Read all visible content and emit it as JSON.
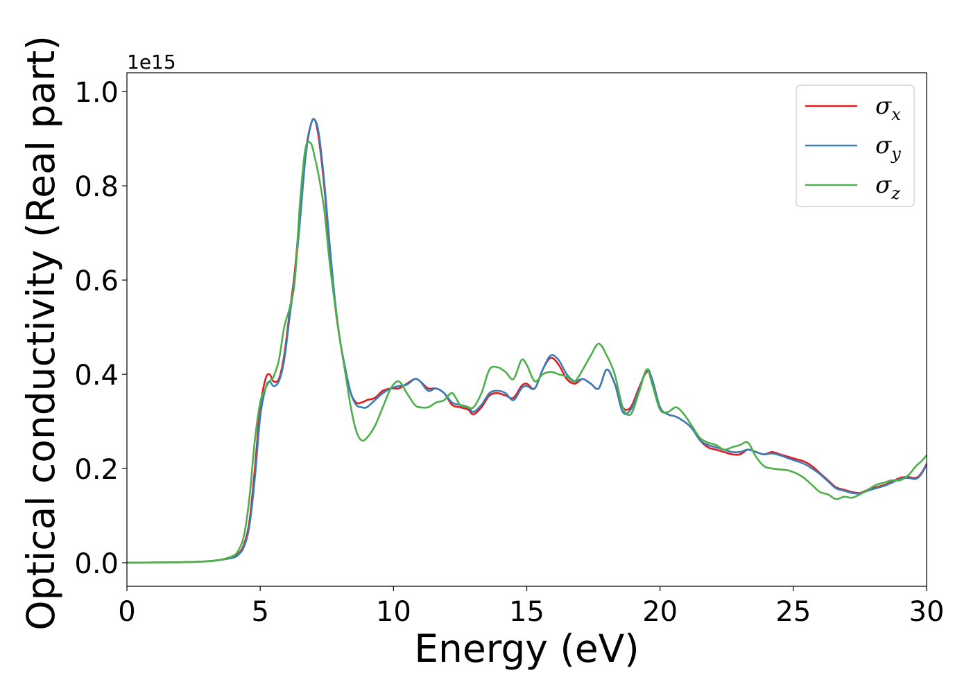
{
  "chart_data": {
    "type": "line",
    "xlabel": "Energy (eV)",
    "ylabel": "Optical conductivity (Real part)",
    "y_offset_label": "1e15",
    "xlim": [
      0,
      30
    ],
    "ylim": [
      -0.05,
      1.04
    ],
    "x_ticks": [
      0,
      5,
      10,
      15,
      20,
      25,
      30
    ],
    "x_tick_labels": [
      "0",
      "5",
      "10",
      "15",
      "20",
      "25",
      "30"
    ],
    "y_ticks": [
      0.0,
      0.2,
      0.4,
      0.6,
      0.8,
      1.0
    ],
    "y_tick_labels": [
      "0.0",
      "0.2",
      "0.4",
      "0.6",
      "0.8",
      "1.0"
    ],
    "grid": false,
    "legend_position": "top-right",
    "series": [
      {
        "name": "σx",
        "legend_main": "σ",
        "legend_sub": "x",
        "color": "#e41a1c",
        "x": [
          0,
          2,
          3,
          3.5,
          4,
          4.2,
          4.4,
          4.6,
          4.8,
          5.0,
          5.2,
          5.35,
          5.5,
          5.7,
          5.9,
          6.1,
          6.3,
          6.5,
          6.7,
          6.9,
          7.05,
          7.2,
          7.4,
          7.6,
          7.8,
          8.0,
          8.2,
          8.4,
          8.6,
          8.8,
          9.0,
          9.3,
          9.6,
          9.9,
          10.2,
          10.5,
          10.8,
          11.0,
          11.3,
          11.6,
          11.9,
          12.2,
          12.5,
          12.8,
          13.0,
          13.3,
          13.6,
          13.9,
          14.2,
          14.5,
          14.8,
          15.0,
          15.3,
          15.6,
          15.9,
          16.2,
          16.5,
          16.8,
          17.1,
          17.4,
          17.7,
          18.0,
          18.3,
          18.6,
          18.9,
          19.2,
          19.5,
          19.7,
          20.0,
          20.3,
          20.6,
          20.9,
          21.2,
          21.5,
          21.8,
          22.1,
          22.4,
          22.7,
          23.0,
          23.3,
          23.6,
          23.9,
          24.2,
          24.5,
          24.8,
          25.1,
          25.4,
          25.7,
          26.0,
          26.3,
          26.6,
          26.9,
          27.2,
          27.5,
          27.8,
          28.1,
          28.4,
          28.7,
          29.0,
          29.3,
          29.6,
          29.8,
          30.0
        ],
        "y": [
          0.0,
          0.001,
          0.003,
          0.006,
          0.012,
          0.02,
          0.04,
          0.09,
          0.2,
          0.33,
          0.39,
          0.4,
          0.385,
          0.39,
          0.44,
          0.53,
          0.62,
          0.75,
          0.87,
          0.93,
          0.94,
          0.9,
          0.8,
          0.67,
          0.55,
          0.47,
          0.41,
          0.36,
          0.34,
          0.34,
          0.345,
          0.35,
          0.365,
          0.37,
          0.37,
          0.38,
          0.39,
          0.385,
          0.37,
          0.37,
          0.36,
          0.335,
          0.33,
          0.325,
          0.315,
          0.33,
          0.355,
          0.36,
          0.355,
          0.35,
          0.375,
          0.38,
          0.37,
          0.41,
          0.435,
          0.42,
          0.39,
          0.38,
          0.39,
          0.38,
          0.37,
          0.41,
          0.38,
          0.33,
          0.33,
          0.37,
          0.405,
          0.39,
          0.33,
          0.315,
          0.31,
          0.3,
          0.285,
          0.26,
          0.245,
          0.24,
          0.235,
          0.23,
          0.23,
          0.24,
          0.235,
          0.23,
          0.235,
          0.23,
          0.225,
          0.22,
          0.215,
          0.205,
          0.19,
          0.175,
          0.16,
          0.155,
          0.15,
          0.148,
          0.155,
          0.16,
          0.165,
          0.172,
          0.18,
          0.182,
          0.18,
          0.19,
          0.21
        ]
      },
      {
        "name": "σy",
        "legend_main": "σ",
        "legend_sub": "y",
        "color": "#377eb8",
        "x": [
          0,
          2,
          3,
          3.5,
          4,
          4.2,
          4.4,
          4.6,
          4.8,
          5.0,
          5.2,
          5.35,
          5.5,
          5.7,
          5.9,
          6.1,
          6.3,
          6.5,
          6.7,
          6.9,
          7.05,
          7.2,
          7.4,
          7.6,
          7.8,
          8.0,
          8.2,
          8.4,
          8.6,
          8.8,
          9.0,
          9.3,
          9.6,
          9.9,
          10.2,
          10.5,
          10.8,
          11.0,
          11.3,
          11.6,
          11.9,
          12.2,
          12.5,
          12.8,
          13.0,
          13.3,
          13.6,
          13.9,
          14.2,
          14.5,
          14.8,
          15.0,
          15.3,
          15.6,
          15.9,
          16.2,
          16.5,
          16.8,
          17.1,
          17.4,
          17.7,
          18.0,
          18.3,
          18.6,
          18.9,
          19.2,
          19.5,
          19.7,
          20.0,
          20.3,
          20.6,
          20.9,
          21.2,
          21.5,
          21.8,
          22.1,
          22.4,
          22.7,
          23.0,
          23.3,
          23.6,
          23.9,
          24.2,
          24.5,
          24.8,
          25.1,
          25.4,
          25.7,
          26.0,
          26.3,
          26.6,
          26.9,
          27.2,
          27.5,
          27.8,
          28.1,
          28.4,
          28.7,
          29.0,
          29.3,
          29.6,
          29.8,
          30.0
        ],
        "y": [
          0.0,
          0.001,
          0.003,
          0.006,
          0.011,
          0.018,
          0.035,
          0.08,
          0.18,
          0.31,
          0.37,
          0.385,
          0.375,
          0.385,
          0.43,
          0.52,
          0.61,
          0.73,
          0.86,
          0.93,
          0.94,
          0.91,
          0.81,
          0.68,
          0.56,
          0.47,
          0.41,
          0.36,
          0.335,
          0.33,
          0.33,
          0.345,
          0.36,
          0.37,
          0.375,
          0.378,
          0.39,
          0.385,
          0.365,
          0.37,
          0.36,
          0.34,
          0.335,
          0.33,
          0.32,
          0.335,
          0.36,
          0.365,
          0.36,
          0.345,
          0.37,
          0.375,
          0.37,
          0.41,
          0.44,
          0.43,
          0.4,
          0.385,
          0.39,
          0.38,
          0.37,
          0.41,
          0.38,
          0.32,
          0.325,
          0.365,
          0.41,
          0.39,
          0.33,
          0.315,
          0.31,
          0.3,
          0.285,
          0.26,
          0.25,
          0.245,
          0.24,
          0.235,
          0.235,
          0.24,
          0.235,
          0.23,
          0.232,
          0.228,
          0.222,
          0.216,
          0.21,
          0.2,
          0.188,
          0.173,
          0.158,
          0.153,
          0.148,
          0.147,
          0.153,
          0.158,
          0.163,
          0.17,
          0.178,
          0.18,
          0.178,
          0.188,
          0.208
        ]
      },
      {
        "name": "σz",
        "legend_main": "σ",
        "legend_sub": "z",
        "color": "#4daf4a",
        "x": [
          0,
          2,
          3,
          3.5,
          4,
          4.2,
          4.4,
          4.6,
          4.8,
          5.0,
          5.2,
          5.35,
          5.5,
          5.7,
          5.9,
          6.1,
          6.3,
          6.5,
          6.7,
          6.9,
          7.05,
          7.2,
          7.4,
          7.6,
          7.8,
          8.0,
          8.2,
          8.4,
          8.6,
          8.8,
          9.0,
          9.3,
          9.6,
          9.9,
          10.2,
          10.5,
          10.8,
          11.0,
          11.3,
          11.6,
          11.9,
          12.2,
          12.5,
          12.8,
          13.0,
          13.3,
          13.6,
          13.9,
          14.2,
          14.5,
          14.8,
          15.0,
          15.3,
          15.6,
          15.9,
          16.2,
          16.5,
          16.8,
          17.1,
          17.4,
          17.7,
          18.0,
          18.3,
          18.6,
          18.9,
          19.2,
          19.5,
          19.7,
          20.0,
          20.3,
          20.6,
          20.9,
          21.2,
          21.5,
          21.8,
          22.1,
          22.4,
          22.7,
          23.0,
          23.3,
          23.6,
          23.9,
          24.2,
          24.5,
          24.8,
          25.1,
          25.4,
          25.7,
          26.0,
          26.3,
          26.6,
          26.9,
          27.2,
          27.5,
          27.8,
          28.1,
          28.4,
          28.7,
          29.0,
          29.3,
          29.6,
          29.8,
          30.0
        ],
        "y": [
          0.0,
          0.001,
          0.003,
          0.006,
          0.015,
          0.028,
          0.06,
          0.14,
          0.26,
          0.34,
          0.37,
          0.385,
          0.395,
          0.43,
          0.5,
          0.54,
          0.6,
          0.77,
          0.88,
          0.89,
          0.86,
          0.82,
          0.75,
          0.64,
          0.55,
          0.47,
          0.4,
          0.33,
          0.28,
          0.26,
          0.265,
          0.29,
          0.33,
          0.37,
          0.385,
          0.36,
          0.335,
          0.33,
          0.33,
          0.34,
          0.345,
          0.36,
          0.335,
          0.33,
          0.33,
          0.36,
          0.41,
          0.415,
          0.405,
          0.39,
          0.43,
          0.42,
          0.385,
          0.4,
          0.405,
          0.4,
          0.395,
          0.385,
          0.41,
          0.44,
          0.465,
          0.44,
          0.4,
          0.33,
          0.315,
          0.36,
          0.41,
          0.38,
          0.325,
          0.32,
          0.33,
          0.315,
          0.29,
          0.265,
          0.255,
          0.25,
          0.24,
          0.245,
          0.25,
          0.255,
          0.225,
          0.205,
          0.2,
          0.198,
          0.196,
          0.19,
          0.18,
          0.165,
          0.15,
          0.145,
          0.135,
          0.14,
          0.138,
          0.145,
          0.155,
          0.165,
          0.17,
          0.175,
          0.175,
          0.185,
          0.205,
          0.215,
          0.228
        ]
      }
    ]
  }
}
